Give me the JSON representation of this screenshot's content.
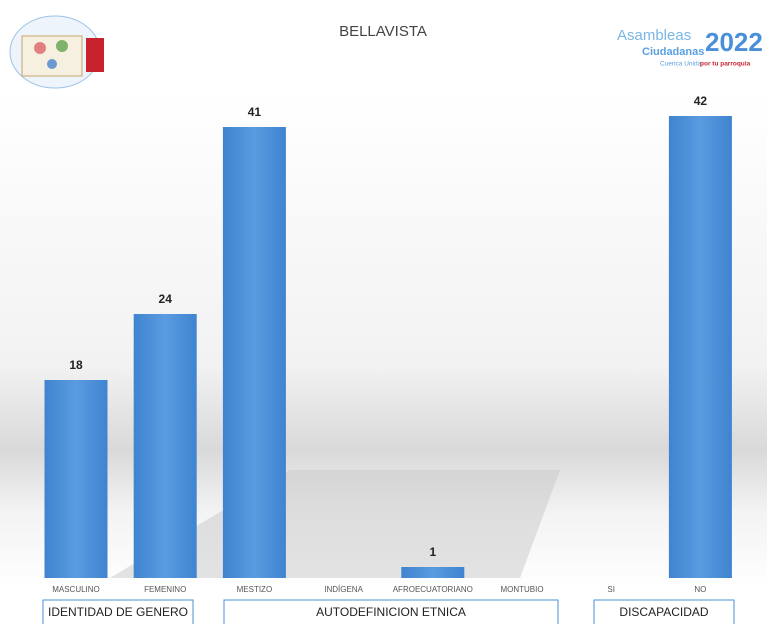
{
  "chart_data": {
    "type": "bar",
    "title": "BELLAVISTA",
    "categories": [
      "MASCULINO",
      "FEMENINO",
      "MESTIZO",
      "INDÍGENA",
      "AFROECUATORIANO",
      "MONTUBIO",
      "SI",
      "NO"
    ],
    "values": [
      18,
      24,
      41,
      null,
      1,
      null,
      null,
      42
    ],
    "color": "#4a8fd8",
    "groups": [
      "IDENTIDAD DE GENERO",
      "AUTODEFINICION ETNICA",
      "DISCAPACIDAD"
    ]
  },
  "logo": {
    "line1": "Asambleas",
    "line2": "Ciudadanas",
    "year": "2022",
    "tagline": "Cuenca Unida",
    "tagline_bold": "por tu parroquia"
  }
}
